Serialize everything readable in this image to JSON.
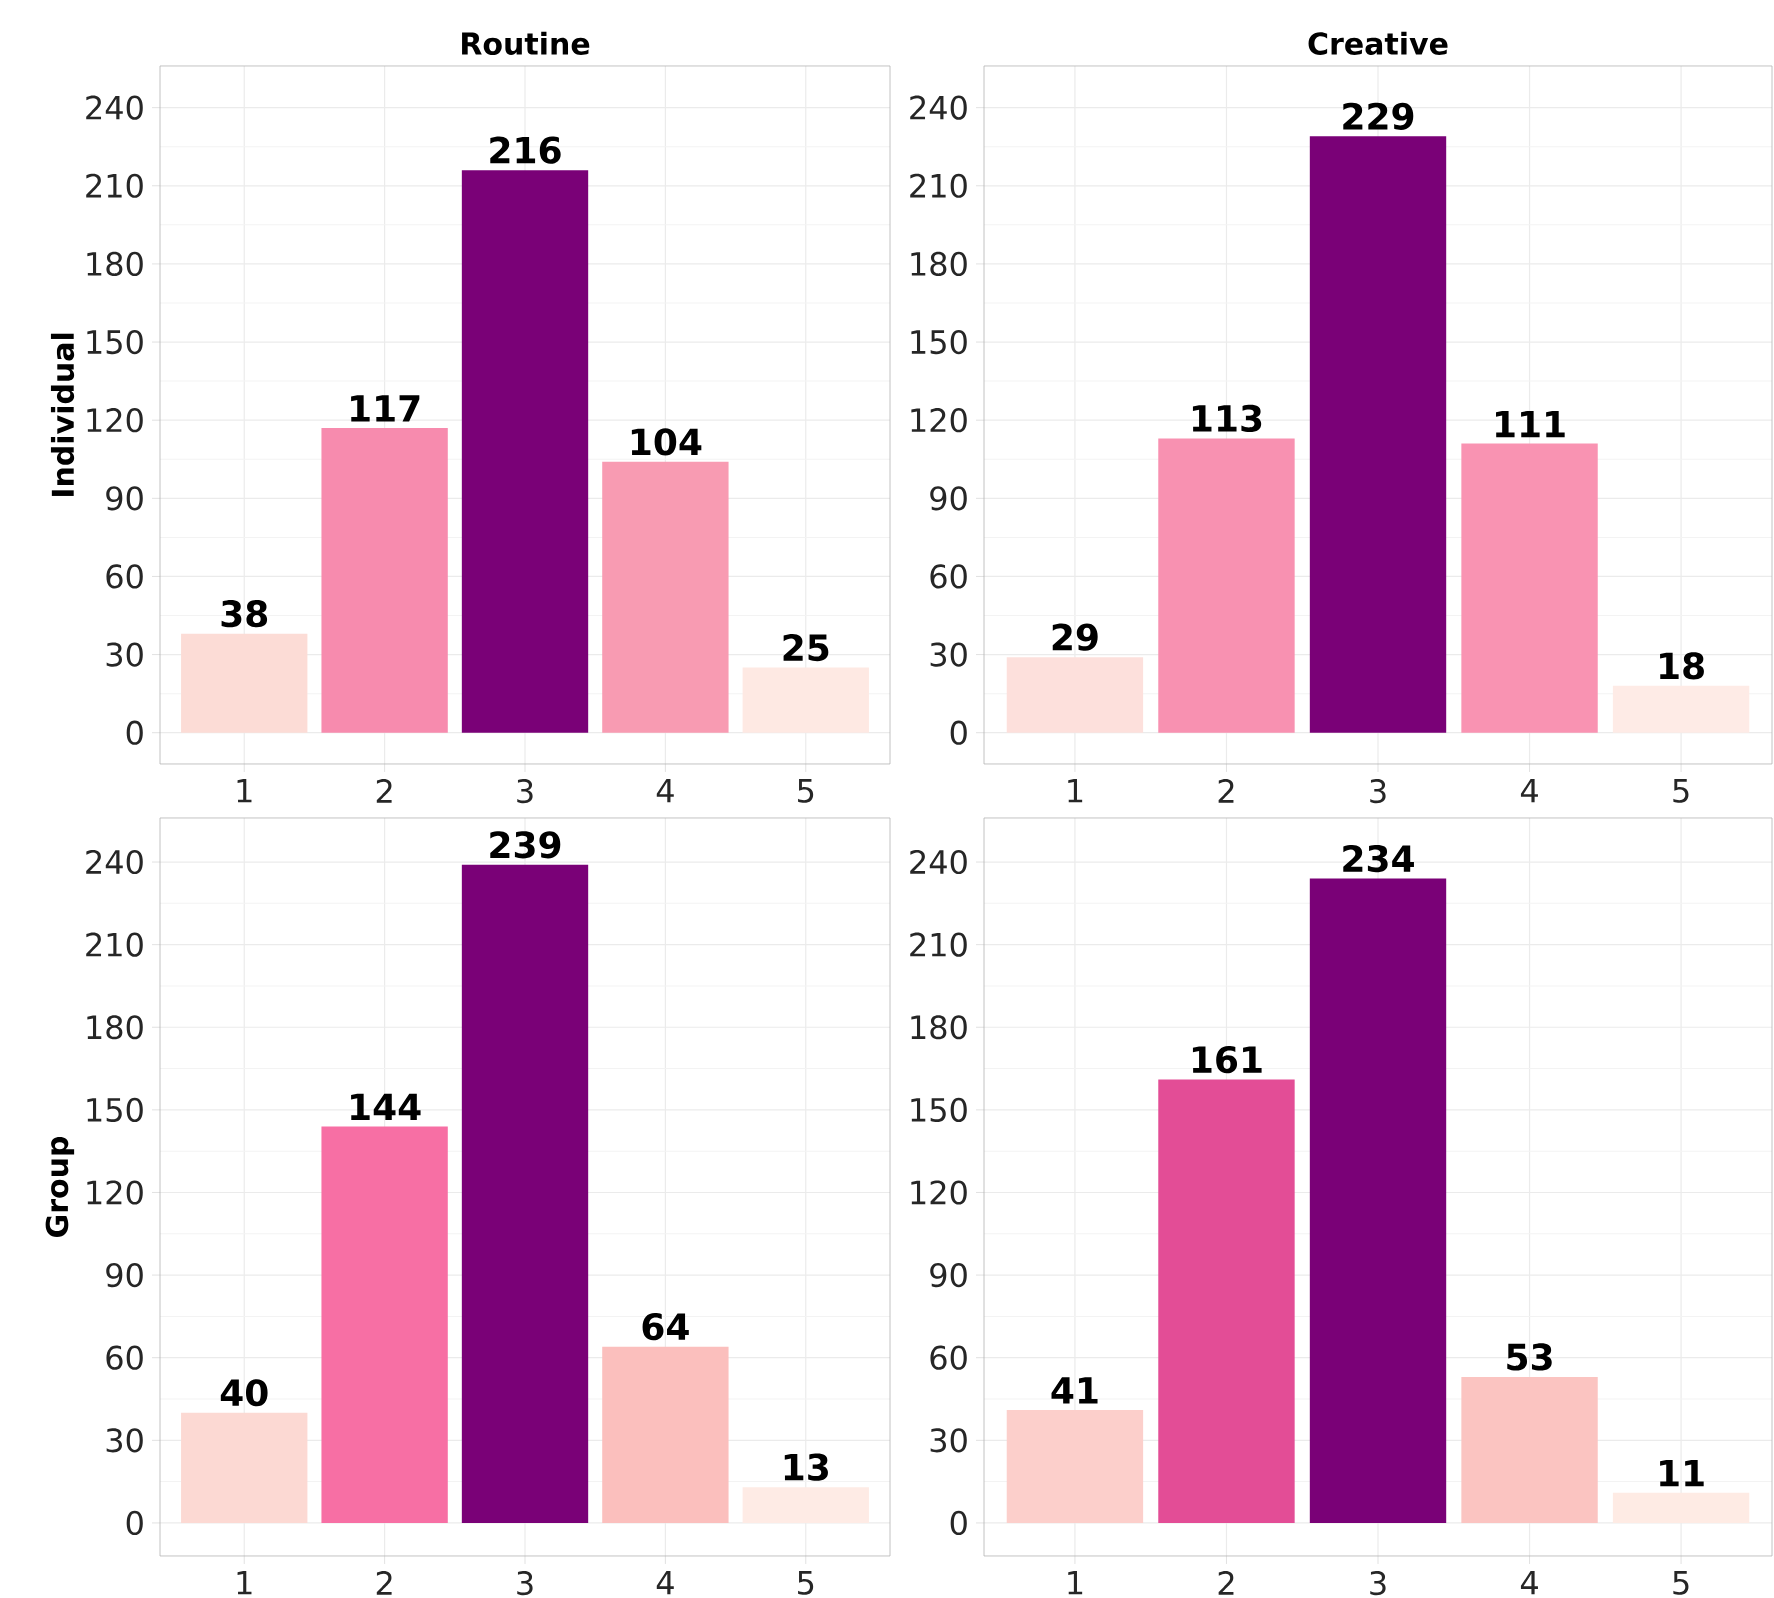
{
  "chart_data": [
    {
      "type": "bar",
      "title": "Routine",
      "ylabel": "Individual",
      "categories": [
        "1",
        "2",
        "3",
        "4",
        "5"
      ],
      "values": [
        38,
        117,
        216,
        104,
        25
      ],
      "colors": [
        "#fcdcd6",
        "#f78bae",
        "#7a0177",
        "#f89bb2",
        "#fee9e3"
      ],
      "ylim": [
        -12,
        256
      ],
      "yticks": [
        0,
        30,
        60,
        90,
        120,
        150,
        180,
        210,
        240
      ],
      "grid": true,
      "data_labels": true
    },
    {
      "type": "bar",
      "title": "Creative",
      "categories": [
        "1",
        "2",
        "3",
        "4",
        "5"
      ],
      "values": [
        29,
        113,
        229,
        111,
        18
      ],
      "colors": [
        "#fde0dc",
        "#f891b1",
        "#7a0177",
        "#f993b2",
        "#feebe6"
      ],
      "ylim": [
        -12,
        256
      ],
      "yticks": [
        0,
        30,
        60,
        90,
        120,
        150,
        180,
        210,
        240
      ],
      "grid": true,
      "data_labels": true
    },
    {
      "type": "bar",
      "ylabel": "Group",
      "categories": [
        "1",
        "2",
        "3",
        "4",
        "5"
      ],
      "values": [
        40,
        144,
        239,
        64,
        13
      ],
      "colors": [
        "#fcd9d3",
        "#f76fa4",
        "#7a0177",
        "#fbbfbd",
        "#feebe5"
      ],
      "ylim": [
        -12,
        256
      ],
      "yticks": [
        0,
        30,
        60,
        90,
        120,
        150,
        180,
        210,
        240
      ],
      "grid": true,
      "data_labels": true
    },
    {
      "type": "bar",
      "categories": [
        "1",
        "2",
        "3",
        "4",
        "5"
      ],
      "values": [
        41,
        161,
        234,
        53,
        11
      ],
      "colors": [
        "#fccfcb",
        "#e34d96",
        "#7a0177",
        "#fbc4c1",
        "#feebe4"
      ],
      "ylim": [
        -12,
        256
      ],
      "yticks": [
        0,
        30,
        60,
        90,
        120,
        150,
        180,
        210,
        240
      ],
      "grid": true,
      "data_labels": true
    }
  ]
}
